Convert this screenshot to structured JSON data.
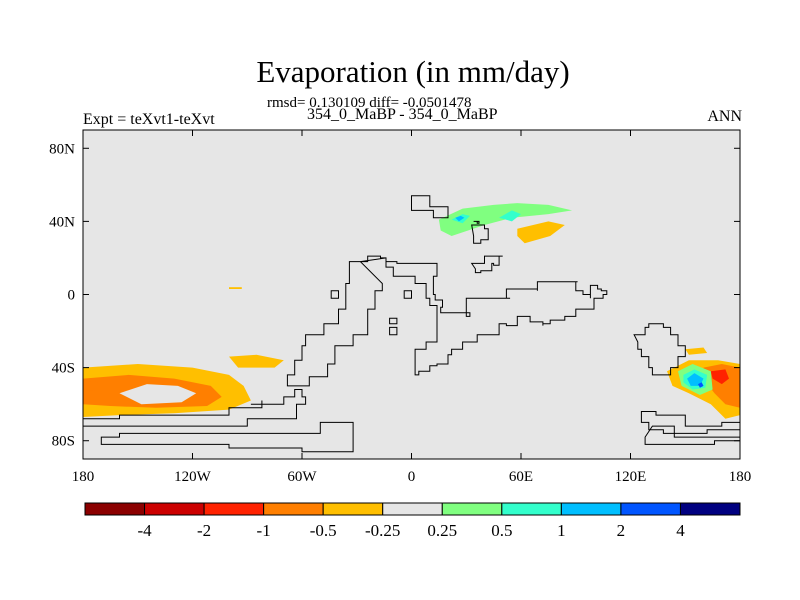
{
  "chart_data": {
    "type": "heatmap",
    "title": "Evaporation (in mm/day)",
    "subtitle": "rmsd= 0.130109 diff= -0.0501478",
    "center_label": "354_0_MaBP - 354_0_MaBP",
    "left_label": "Expt = teXvt1-teXvt",
    "right_label": "ANN",
    "x_ticks": [
      "180",
      "120W",
      "60W",
      "0",
      "60E",
      "120E",
      "180"
    ],
    "x_tick_values": [
      -180,
      -120,
      -60,
      0,
      60,
      120,
      180
    ],
    "y_ticks": [
      "80N",
      "40N",
      "0",
      "40S",
      "80S"
    ],
    "y_tick_values": [
      80,
      40,
      0,
      -40,
      -80
    ],
    "xlim": [
      -180,
      180
    ],
    "ylim": [
      -90,
      90
    ],
    "background_color": "#e6e6e6",
    "colorbar": {
      "labels": [
        "-4",
        "-2",
        "-1",
        "-0.5",
        "-0.25",
        "0.25",
        "0.5",
        "1",
        "2",
        "4"
      ],
      "colors": [
        "#8b0000",
        "#cc0000",
        "#ff2200",
        "#ff7f00",
        "#ffbf00",
        "#e6e6e6",
        "#80ff80",
        "#33ffcc",
        "#00bfff",
        "#0055ff",
        "#000080"
      ]
    },
    "regions": [
      {
        "level": "-0.25 to -0.5",
        "color": "#ffbf00",
        "polygon": [
          [
            -180,
            -40
          ],
          [
            -150,
            -38
          ],
          [
            -120,
            -40
          ],
          [
            -100,
            -44
          ],
          [
            -92,
            -50
          ],
          [
            -88,
            -58
          ],
          [
            -100,
            -63
          ],
          [
            -130,
            -65
          ],
          [
            -160,
            -66
          ],
          [
            -180,
            -67
          ]
        ]
      },
      {
        "level": "-0.5 to -1",
        "color": "#ff7f00",
        "polygon": [
          [
            -180,
            -46
          ],
          [
            -155,
            -44
          ],
          [
            -130,
            -46
          ],
          [
            -110,
            -50
          ],
          [
            -104,
            -56
          ],
          [
            -112,
            -61
          ],
          [
            -140,
            -62
          ],
          [
            -165,
            -61
          ],
          [
            -180,
            -60
          ]
        ]
      },
      {
        "level": "-0.25 to 0.25",
        "color": "#e6e6e6",
        "polygon": [
          [
            -160,
            -54
          ],
          [
            -145,
            -49
          ],
          [
            -128,
            -50
          ],
          [
            -118,
            -54
          ],
          [
            -126,
            -59
          ],
          [
            -148,
            -60
          ]
        ]
      },
      {
        "level": "-0.5 to -1",
        "color": "#ff7f00",
        "polygon": [
          [
            -180,
            -47
          ],
          [
            -172,
            -48
          ],
          [
            -170,
            -52
          ],
          [
            -180,
            -53
          ]
        ]
      },
      {
        "level": "-0.25 to -0.5",
        "color": "#ffbf00",
        "polygon": [
          [
            -100,
            -34
          ],
          [
            -85,
            -33
          ],
          [
            -70,
            -36
          ],
          [
            -75,
            -40
          ],
          [
            -95,
            -40
          ]
        ]
      },
      {
        "level": "-0.25 to -0.5",
        "color": "#ffbf00",
        "polygon": [
          [
            -100,
            4
          ],
          [
            -93,
            4
          ],
          [
            -93,
            3
          ],
          [
            -100,
            3
          ]
        ]
      },
      {
        "level": "0.25 to 0.5",
        "color": "#80ff80",
        "polygon": [
          [
            15,
            41
          ],
          [
            28,
            47
          ],
          [
            45,
            49
          ],
          [
            58,
            50
          ],
          [
            75,
            49
          ],
          [
            88,
            46
          ],
          [
            75,
            44
          ],
          [
            55,
            42
          ],
          [
            40,
            38
          ],
          [
            22,
            32
          ],
          [
            16,
            35
          ]
        ]
      },
      {
        "level": "0.5 to 1",
        "color": "#33ffcc",
        "polygon": [
          [
            48,
            42
          ],
          [
            55,
            46
          ],
          [
            60,
            44
          ],
          [
            55,
            40
          ]
        ]
      },
      {
        "level": "0.5 to 1",
        "color": "#33ffcc",
        "polygon": [
          [
            22,
            41
          ],
          [
            28,
            44
          ],
          [
            32,
            43
          ],
          [
            28,
            39
          ]
        ]
      },
      {
        "level": "1 to 2",
        "color": "#00bfff",
        "polygon": [
          [
            24,
            42
          ],
          [
            27,
            43
          ],
          [
            29,
            42
          ],
          [
            26,
            40
          ]
        ]
      },
      {
        "level": "-0.25 to -0.5",
        "color": "#ffbf00",
        "polygon": [
          [
            58,
            36
          ],
          [
            75,
            40
          ],
          [
            84,
            38
          ],
          [
            76,
            32
          ],
          [
            62,
            28
          ],
          [
            58,
            32
          ]
        ]
      },
      {
        "level": "-0.25 to -0.5",
        "color": "#ffbf00",
        "polygon": [
          [
            150,
            -30
          ],
          [
            160,
            -29
          ],
          [
            162,
            -32
          ],
          [
            152,
            -33
          ]
        ]
      },
      {
        "level": "-0.25 to -0.5",
        "color": "#ffbf00",
        "polygon": [
          [
            140,
            -42
          ],
          [
            152,
            -36
          ],
          [
            168,
            -36
          ],
          [
            180,
            -38
          ],
          [
            180,
            -66
          ],
          [
            172,
            -68
          ],
          [
            164,
            -60
          ],
          [
            152,
            -54
          ],
          [
            143,
            -50
          ]
        ]
      },
      {
        "level": "-0.5 to -1",
        "color": "#ff7f00",
        "polygon": [
          [
            160,
            -40
          ],
          [
            170,
            -38
          ],
          [
            180,
            -40
          ],
          [
            180,
            -62
          ],
          [
            172,
            -60
          ],
          [
            166,
            -54
          ],
          [
            160,
            -46
          ]
        ]
      },
      {
        "level": "-1 to -2",
        "color": "#ff2200",
        "polygon": [
          [
            164,
            -42
          ],
          [
            172,
            -41
          ],
          [
            174,
            -46
          ],
          [
            170,
            -49
          ],
          [
            165,
            -46
          ]
        ]
      },
      {
        "level": "0.25 to 0.5",
        "color": "#80ff80",
        "polygon": [
          [
            146,
            -42
          ],
          [
            154,
            -38
          ],
          [
            164,
            -42
          ],
          [
            165,
            -52
          ],
          [
            158,
            -55
          ],
          [
            148,
            -50
          ]
        ]
      },
      {
        "level": "0.5 to 1",
        "color": "#33ffcc",
        "polygon": [
          [
            149,
            -44
          ],
          [
            155,
            -41
          ],
          [
            162,
            -44
          ],
          [
            161,
            -51
          ],
          [
            154,
            -52
          ],
          [
            149,
            -48
          ]
        ]
      },
      {
        "level": "1 to 2",
        "color": "#00bfff",
        "polygon": [
          [
            151,
            -46
          ],
          [
            155,
            -43
          ],
          [
            160,
            -46
          ],
          [
            158,
            -50
          ],
          [
            153,
            -50
          ]
        ]
      },
      {
        "level": "2 to 4",
        "color": "#0055ff",
        "polygon": [
          [
            157,
            -49
          ],
          [
            159,
            -48
          ],
          [
            160,
            -50
          ],
          [
            158,
            -51
          ]
        ]
      }
    ],
    "coastlines": [
      [
        [
          0,
          54
        ],
        [
          10,
          53
        ],
        [
          10,
          48
        ],
        [
          20,
          47
        ],
        [
          20,
          42
        ],
        [
          12,
          42
        ],
        [
          12,
          46
        ],
        [
          0,
          46
        ]
      ],
      [
        [
          33,
          38
        ],
        [
          40,
          36
        ],
        [
          42,
          30
        ],
        [
          38,
          28
        ],
        [
          34,
          32
        ]
      ],
      [
        [
          34,
          40
        ],
        [
          36,
          39
        ],
        [
          37,
          40
        ]
      ],
      [
        [
          33,
          17
        ],
        [
          40,
          17
        ],
        [
          40,
          21
        ],
        [
          50,
          21
        ],
        [
          48,
          16
        ],
        [
          45,
          17
        ],
        [
          44,
          13
        ],
        [
          38,
          12
        ],
        [
          35,
          14
        ]
      ],
      [
        [
          -28,
          18
        ],
        [
          -24,
          21
        ],
        [
          -17,
          20
        ],
        [
          -14,
          20
        ],
        [
          -14,
          18
        ],
        [
          -8,
          18
        ],
        [
          -8,
          17
        ],
        [
          14,
          15
        ],
        [
          14,
          10
        ],
        [
          12,
          0
        ],
        [
          13,
          -3
        ],
        [
          17,
          -7
        ],
        [
          16,
          -10
        ],
        [
          32,
          -12
        ],
        [
          30,
          -2
        ],
        [
          54,
          -2
        ],
        [
          52,
          3
        ],
        [
          69,
          2
        ],
        [
          69,
          7
        ],
        [
          91,
          7
        ],
        [
          90,
          2
        ],
        [
          94,
          0
        ],
        [
          98,
          -2
        ],
        [
          98,
          5
        ],
        [
          102,
          3
        ],
        [
          104,
          2
        ],
        [
          107,
          0
        ],
        [
          105,
          -2
        ],
        [
          100,
          -8
        ],
        [
          90,
          -12
        ],
        [
          84,
          -14
        ],
        [
          76,
          -16
        ],
        [
          72,
          -17
        ],
        [
          72,
          -15
        ],
        [
          65,
          -12
        ],
        [
          58,
          -17
        ],
        [
          52,
          -16
        ],
        [
          48,
          -22
        ],
        [
          41,
          -22
        ],
        [
          36,
          -26
        ],
        [
          28,
          -30
        ],
        [
          22,
          -33
        ],
        [
          20,
          -38
        ],
        [
          14,
          -39
        ],
        [
          10,
          -42
        ],
        [
          4,
          -44
        ],
        [
          2,
          -42
        ],
        [
          2,
          -30
        ],
        [
          8,
          -26
        ],
        [
          14,
          -16
        ],
        [
          14,
          -6
        ],
        [
          10,
          -2
        ],
        [
          8,
          6
        ],
        [
          2,
          10
        ],
        [
          -10,
          15
        ],
        [
          -14,
          20
        ]
      ],
      [
        [
          -28,
          18
        ],
        [
          -34,
          6
        ],
        [
          -36,
          -8
        ],
        [
          -40,
          -16
        ],
        [
          -48,
          -22
        ],
        [
          -58,
          -28
        ],
        [
          -60,
          -36
        ],
        [
          -64,
          -44
        ],
        [
          -68,
          -50
        ],
        [
          -62,
          -50
        ],
        [
          -56,
          -45
        ],
        [
          -46,
          -38
        ],
        [
          -42,
          -28
        ],
        [
          -32,
          -22
        ],
        [
          -24,
          -8
        ],
        [
          -20,
          2
        ],
        [
          -16,
          6
        ]
      ],
      [
        [
          -44,
          -2
        ],
        [
          -40,
          -2
        ],
        [
          -40,
          2
        ],
        [
          -44,
          2
        ]
      ],
      [
        [
          -12,
          -16
        ],
        [
          -8,
          -16
        ],
        [
          -8,
          -13
        ],
        [
          -12,
          -13
        ]
      ],
      [
        [
          -12,
          -22
        ],
        [
          -8,
          -22
        ],
        [
          -8,
          -18
        ],
        [
          -12,
          -18
        ]
      ],
      [
        [
          -4,
          2
        ],
        [
          0,
          2
        ],
        [
          0,
          -2
        ],
        [
          -4,
          -2
        ]
      ],
      [
        [
          -88,
          -60
        ],
        [
          -82,
          -58
        ],
        [
          -82,
          -62
        ],
        [
          -100,
          -66
        ],
        [
          -120,
          -66
        ],
        [
          -160,
          -68
        ],
        [
          -180,
          -68
        ],
        [
          -180,
          -72
        ],
        [
          -160,
          -72
        ],
        [
          -120,
          -72
        ],
        [
          -90,
          -68
        ],
        [
          -70,
          -68
        ],
        [
          -63,
          -60
        ],
        [
          -58,
          -56
        ],
        [
          -60,
          -52
        ],
        [
          -64,
          -56
        ],
        [
          -70,
          -60
        ]
      ],
      [
        [
          -170,
          -78
        ],
        [
          -160,
          -76
        ],
        [
          -120,
          -76
        ],
        [
          -80,
          -76
        ],
        [
          -50,
          -70
        ],
        [
          -32,
          -70
        ],
        [
          -32,
          -86
        ],
        [
          -60,
          -84
        ],
        [
          -100,
          -82
        ],
        [
          -140,
          -82
        ],
        [
          -170,
          -82
        ]
      ],
      [
        [
          122,
          -22
        ],
        [
          128,
          -18
        ],
        [
          130,
          -16
        ],
        [
          138,
          -18
        ],
        [
          142,
          -22
        ],
        [
          146,
          -28
        ],
        [
          150,
          -34
        ],
        [
          146,
          -40
        ],
        [
          142,
          -44
        ],
        [
          138,
          -44
        ],
        [
          132,
          -40
        ],
        [
          130,
          -34
        ],
        [
          126,
          -30
        ],
        [
          124,
          -26
        ]
      ],
      [
        [
          126,
          -64
        ],
        [
          132,
          -64
        ],
        [
          134,
          -66
        ],
        [
          150,
          -66
        ],
        [
          150,
          -72
        ],
        [
          160,
          -72
        ],
        [
          170,
          -70
        ],
        [
          180,
          -70
        ],
        [
          180,
          -74
        ],
        [
          162,
          -76
        ],
        [
          148,
          -76
        ],
        [
          138,
          -74
        ],
        [
          130,
          -70
        ],
        [
          126,
          -68
        ]
      ],
      [
        [
          132,
          -72
        ],
        [
          144,
          -72
        ],
        [
          144,
          -78
        ],
        [
          170,
          -78
        ],
        [
          180,
          -80
        ],
        [
          166,
          -82
        ],
        [
          132,
          -82
        ],
        [
          128,
          -78
        ]
      ]
    ]
  }
}
